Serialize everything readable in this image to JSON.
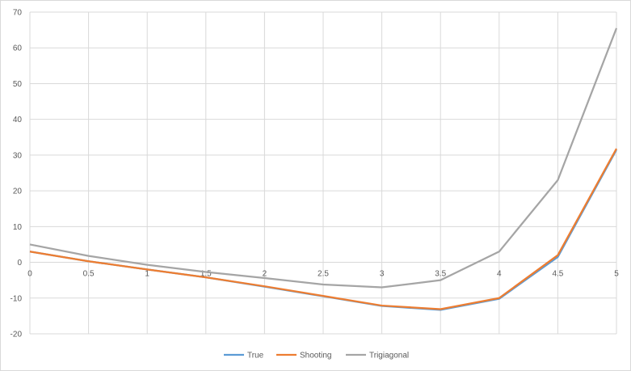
{
  "chart_data": {
    "type": "line",
    "x": [
      0,
      0.5,
      1,
      1.5,
      2,
      2.5,
      3,
      3.5,
      4,
      4.5,
      5
    ],
    "x_tick_labels": [
      "0",
      "0.5",
      "1",
      "1.5",
      "2",
      "2.5",
      "3",
      "3.5",
      "4",
      "4.5",
      "5"
    ],
    "y_tick_labels": [
      "-20",
      "-10",
      "0",
      "10",
      "20",
      "30",
      "40",
      "50",
      "60",
      "70"
    ],
    "ylim": [
      -20,
      70
    ],
    "xlim": [
      0,
      5
    ],
    "grid": true,
    "legend_position": "bottom",
    "series": [
      {
        "name": "True",
        "color": "#5b9bd5",
        "values": [
          3.0,
          0.3,
          -2.0,
          -4.2,
          -6.8,
          -9.5,
          -12.2,
          -13.3,
          -10.2,
          1.5,
          31.5
        ]
      },
      {
        "name": "Shooting",
        "color": "#ed7d31",
        "values": [
          3.0,
          0.3,
          -2.0,
          -4.2,
          -6.7,
          -9.4,
          -12.1,
          -13.1,
          -10.0,
          2.0,
          31.8
        ]
      },
      {
        "name": "Trigiagonal",
        "color": "#a5a5a5",
        "values": [
          5.0,
          1.8,
          -0.7,
          -2.7,
          -4.4,
          -6.2,
          -7.0,
          -5.0,
          3.0,
          23.0,
          65.5
        ]
      }
    ]
  }
}
